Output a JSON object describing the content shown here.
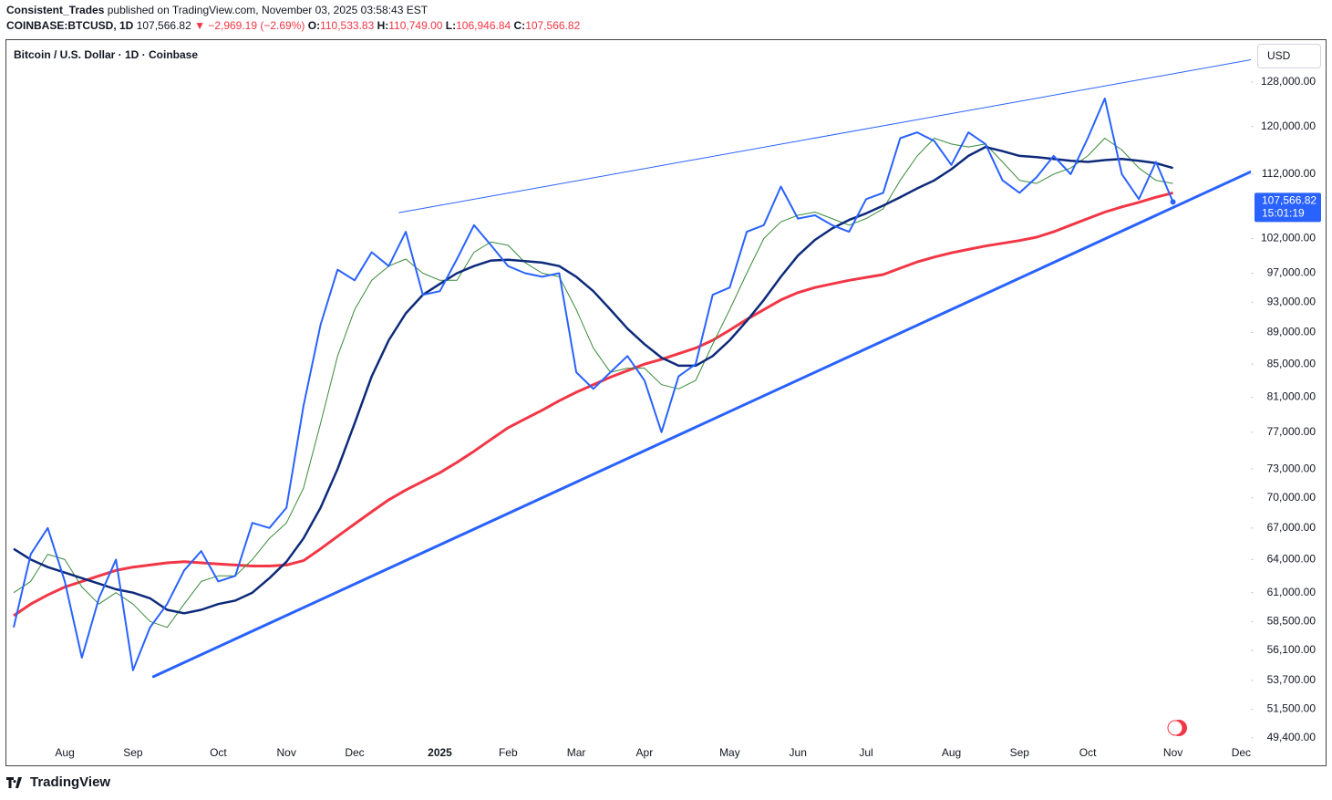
{
  "header": {
    "author": "Consistent_Trades",
    "published": "published on TradingView.com, November 03, 2025 03:58:43 EST"
  },
  "quote": {
    "symbol": "COINBASE:BTCUSD, 1D",
    "price": "107,566.82",
    "change": "▼ −2,969.19 (−2.69%)",
    "ohlc": [
      {
        "label": "O:",
        "value": "110,533.83"
      },
      {
        "label": "H:",
        "value": "110,749.00"
      },
      {
        "label": "L:",
        "value": "106,946.84"
      },
      {
        "label": "C:",
        "value": "107,566.82"
      }
    ]
  },
  "chart_data": {
    "type": "line",
    "title": "Bitcoin / U.S. Dollar · 1D · Coinbase",
    "currency": "USD",
    "log_scale": true,
    "grid": false,
    "categories": [
      null,
      null,
      null,
      "Aug",
      null,
      null,
      null,
      "Sep",
      null,
      null,
      null,
      null,
      "Oct",
      null,
      null,
      null,
      "Nov",
      null,
      null,
      null,
      "Dec",
      null,
      null,
      null,
      null,
      "2025",
      null,
      null,
      null,
      "Feb",
      null,
      null,
      null,
      "Mar",
      null,
      null,
      null,
      "Apr",
      null,
      null,
      null,
      null,
      "May",
      null,
      null,
      null,
      "Jun",
      null,
      null,
      null,
      "Jul",
      null,
      null,
      null,
      null,
      "Aug",
      null,
      null,
      null,
      "Sep",
      null,
      null,
      null,
      "Oct",
      null,
      null,
      null,
      null,
      "Nov",
      null,
      null,
      null,
      "Dec"
    ],
    "series": [
      {
        "color": "#f23645",
        "width": 3,
        "values": [
          59000,
          60000,
          60800,
          61500,
          62000,
          62500,
          63000,
          63300,
          63500,
          63700,
          63800,
          63700,
          63600,
          63500,
          63400,
          63400,
          63500,
          63900,
          65000,
          66200,
          67400,
          68600,
          69800,
          70800,
          71700,
          72600,
          73700,
          74900,
          76200,
          77500,
          78500,
          79500,
          80600,
          81600,
          82500,
          83400,
          84200,
          85000,
          85600,
          86300,
          87000,
          88000,
          89300,
          90700,
          92000,
          93300,
          94300,
          95000,
          95500,
          96000,
          96400,
          96800,
          97700,
          98600,
          99300,
          99900,
          100400,
          100900,
          101300,
          101700,
          102200,
          103000,
          104000,
          105000,
          106000,
          106800,
          107500,
          108300,
          109000,
          null,
          null,
          null,
          null
        ]
      },
      {
        "color": "#3a8a3a",
        "width": 1,
        "values": [
          61000,
          62000,
          64500,
          64000,
          61500,
          60000,
          61000,
          60000,
          58500,
          58000,
          60000,
          62000,
          62500,
          62500,
          64000,
          66000,
          67500,
          71000,
          78000,
          86000,
          92000,
          96000,
          98000,
          99000,
          97000,
          96000,
          96000,
          100000,
          101500,
          101000,
          98500,
          97000,
          96500,
          92000,
          87000,
          84000,
          84500,
          84500,
          82500,
          82000,
          83000,
          87500,
          92000,
          97000,
          102000,
          104500,
          105500,
          106000,
          105000,
          104000,
          105000,
          106500,
          111000,
          115000,
          118000,
          117000,
          116500,
          117000,
          114000,
          111000,
          110500,
          112000,
          113000,
          115000,
          118000,
          116000,
          113000,
          111000,
          110500,
          null,
          null,
          null,
          null
        ]
      },
      {
        "color": "#0d2a7a",
        "width": 2.5,
        "values": [
          65000,
          64000,
          63300,
          62800,
          62300,
          61800,
          61300,
          61000,
          60500,
          59500,
          59200,
          59500,
          60000,
          60300,
          61000,
          62300,
          63800,
          66000,
          69000,
          73000,
          78000,
          83500,
          88000,
          91500,
          94000,
          95500,
          97000,
          98000,
          98800,
          98900,
          98700,
          98500,
          98000,
          96500,
          94500,
          92000,
          89500,
          87500,
          85800,
          84800,
          84800,
          86000,
          88000,
          90500,
          93300,
          96500,
          99500,
          101800,
          103500,
          104800,
          105800,
          107000,
          108300,
          109700,
          111000,
          112800,
          115000,
          116500,
          115800,
          115000,
          114800,
          114500,
          114200,
          114000,
          114300,
          114500,
          114200,
          113800,
          113000,
          null,
          null,
          null,
          null
        ]
      },
      {
        "color": "#2962ff",
        "width": 2,
        "values": [
          58000,
          64500,
          67000,
          62000,
          55500,
          60500,
          64000,
          54500,
          58000,
          60000,
          63000,
          64800,
          62000,
          62500,
          67500,
          67000,
          69000,
          80000,
          90000,
          97500,
          96000,
          100000,
          98000,
          103000,
          94000,
          94500,
          99000,
          104000,
          101000,
          98000,
          97000,
          96500,
          97000,
          84000,
          82000,
          84000,
          86000,
          83000,
          77000,
          83500,
          85000,
          94000,
          95000,
          103000,
          104000,
          110000,
          105000,
          105500,
          104000,
          103000,
          108000,
          109000,
          118000,
          119000,
          117500,
          113500,
          119000,
          117000,
          111000,
          109000,
          111500,
          115000,
          112000,
          118000,
          125000,
          112000,
          108000,
          114000,
          107566.82,
          null,
          null,
          null,
          null
        ]
      }
    ],
    "trendlines": [
      {
        "color": "#2962ff",
        "width": 1,
        "start": {
          "index": 22.6,
          "value": 105900
        },
        "end": {
          "index": 72.7,
          "value": 132300
        }
      },
      {
        "color": "#2962ff",
        "width": 3,
        "start": {
          "index": 8.2,
          "value": 54000
        },
        "end": {
          "index": 72.7,
          "value": 112560
        }
      }
    ],
    "price_tag": {
      "value": 107566.82,
      "label": "107,566.82",
      "countdown": "15:01:19",
      "color": "#2962ff"
    },
    "ylim": [
      47410,
      136230
    ],
    "yticks": [
      {
        "value": 128000,
        "label": "128,000.00"
      },
      {
        "value": 120000,
        "label": "120,000.00"
      },
      {
        "value": 112000,
        "label": "112,000.00"
      },
      {
        "value": 102000,
        "label": "102,000.00"
      },
      {
        "value": 97000,
        "label": "97,000.00"
      },
      {
        "value": 93000,
        "label": "93,000.00"
      },
      {
        "value": 89000,
        "label": "89,000.00"
      },
      {
        "value": 85000,
        "label": "85,000.00"
      },
      {
        "value": 81000,
        "label": "81,000.00"
      },
      {
        "value": 77000,
        "label": "77,000.00"
      },
      {
        "value": 73000,
        "label": "73,000.00"
      },
      {
        "value": 70000,
        "label": "70,000.00"
      },
      {
        "value": 67000,
        "label": "67,000.00"
      },
      {
        "value": 64000,
        "label": "64,000.00"
      },
      {
        "value": 61000,
        "label": "61,000.00"
      },
      {
        "value": 58500,
        "label": "58,500.00"
      },
      {
        "value": 56100,
        "label": "56,100.00"
      },
      {
        "value": 53700,
        "label": "53,700.00"
      },
      {
        "value": 51500,
        "label": "51,500.00"
      },
      {
        "value": 49400,
        "label": "49,400.00"
      }
    ]
  },
  "footer": {
    "brand": "TradingView"
  }
}
